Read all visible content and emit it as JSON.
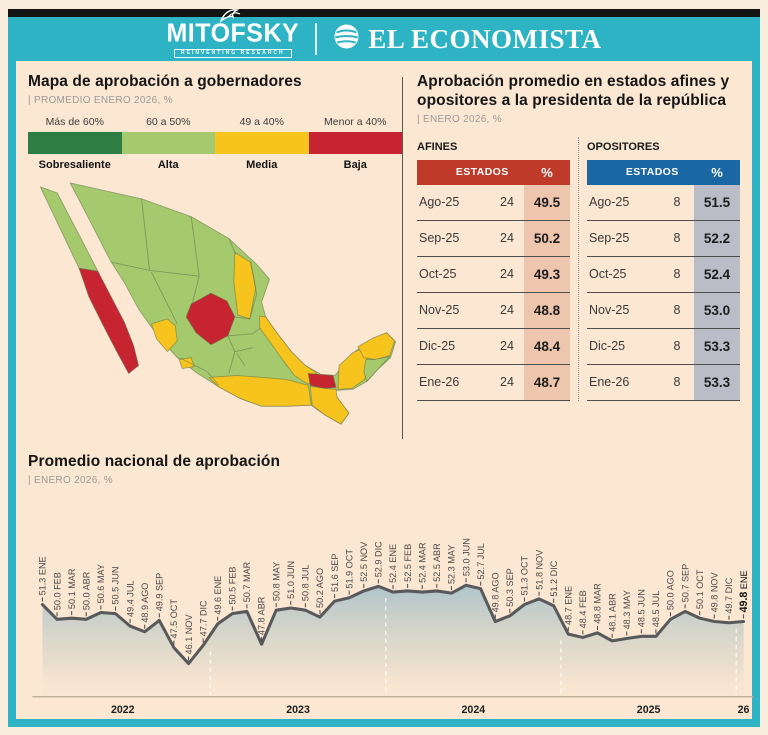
{
  "header": {
    "brand_mitofsky": "MITOFSKY",
    "brand_mitofsky_tagline": "REINVENTING RESEARCH",
    "brand_economista": "EL ECONOMISTA",
    "colors": {
      "band": "#2db3c4",
      "topbar": "#141414"
    }
  },
  "map_section": {
    "title": "Mapa de aprobación a gobernadores",
    "subtitle": "| PROMEDIO ENERO 2026, %",
    "legend": [
      {
        "key": "sobresaliente",
        "range": "Más de 60%",
        "label": "Sobresaliente",
        "color": "#2e7d44"
      },
      {
        "key": "alta",
        "range": "60 a 50%",
        "label": "Alta",
        "color": "#a4ca6d"
      },
      {
        "key": "media",
        "range": "49 a 40%",
        "label": "Media",
        "color": "#f6c41c"
      },
      {
        "key": "baja",
        "range": "Menor a 40%",
        "label": "Baja",
        "color": "#c52430"
      }
    ],
    "regions": [
      {
        "id": "mainland",
        "category": "alta"
      },
      {
        "id": "baja-california",
        "category": "alta"
      },
      {
        "id": "baja-california-sur",
        "category": "baja"
      },
      {
        "id": "nuevo-leon",
        "category": "media"
      },
      {
        "id": "zacatecas",
        "category": "baja"
      },
      {
        "id": "nayarit",
        "category": "media"
      },
      {
        "id": "colima",
        "category": "media"
      },
      {
        "id": "veracruz",
        "category": "media"
      },
      {
        "id": "sur-guerrero-oaxaca",
        "category": "media"
      },
      {
        "id": "tabasco",
        "category": "baja"
      },
      {
        "id": "chiapas",
        "category": "media"
      },
      {
        "id": "campeche",
        "category": "media"
      },
      {
        "id": "yucatan",
        "category": "media"
      },
      {
        "id": "quintana-roo",
        "category": "alta"
      }
    ]
  },
  "tables_section": {
    "title": "Aprobación promedio en estados afines y opositores a la presidenta de la república",
    "subtitle": "| ENERO 2026, %",
    "afines": {
      "label": "AFINES",
      "header_color": "#bf3a28",
      "pct_bg": "#eec5ad",
      "col_estados": "ESTADOS",
      "col_pct": "%",
      "rows": [
        [
          "Ago-25",
          "24",
          "49.5"
        ],
        [
          "Sep-25",
          "24",
          "50.2"
        ],
        [
          "Oct-25",
          "24",
          "49.3"
        ],
        [
          "Nov-25",
          "24",
          "48.8"
        ],
        [
          "Dic-25",
          "24",
          "48.4"
        ],
        [
          "Ene-26",
          "24",
          "48.7"
        ]
      ]
    },
    "opositores": {
      "label": "OPOSITORES",
      "header_color": "#1b67a4",
      "pct_bg": "#babdc7",
      "col_estados": "ESTADOS",
      "col_pct": "%",
      "rows": [
        [
          "Ago-25",
          "8",
          "51.5"
        ],
        [
          "Sep-25",
          "8",
          "52.2"
        ],
        [
          "Oct-25",
          "8",
          "52.4"
        ],
        [
          "Nov-25",
          "8",
          "53.0"
        ],
        [
          "Dic-25",
          "8",
          "53.3"
        ],
        [
          "Ene-26",
          "8",
          "53.3"
        ]
      ]
    }
  },
  "chart_section": {
    "title": "Promedio nacional de aprobación",
    "subtitle": "| ENERO 2026, %"
  },
  "chart_data": {
    "type": "area",
    "title": "Promedio nacional de aprobación",
    "unit": "%",
    "ylim": [
      46,
      53.5
    ],
    "line_color": "#58595b",
    "area_color_top": "#aec4c9",
    "months": [
      "ENE",
      "FEB",
      "MAR",
      "ABR",
      "MAY",
      "JUN",
      "JUL",
      "AGO",
      "SEP",
      "OCT",
      "NOV",
      "DIC"
    ],
    "years": [
      {
        "year": "2022",
        "values": [
          51.3,
          50.0,
          50.1,
          50.0,
          50.6,
          50.5,
          49.4,
          48.9,
          49.9,
          47.5,
          46.1,
          47.7
        ]
      },
      {
        "year": "2023",
        "values": [
          49.6,
          50.5,
          50.7,
          47.8,
          50.8,
          51.0,
          50.8,
          50.2,
          51.6,
          51.9,
          52.5,
          52.9
        ]
      },
      {
        "year": "2024",
        "values": [
          52.4,
          52.5,
          52.4,
          52.5,
          52.3,
          53.0,
          52.7,
          49.8,
          50.3,
          51.3,
          51.8,
          51.2
        ]
      },
      {
        "year": "2025",
        "values": [
          48.7,
          48.4,
          48.8,
          48.1,
          48.3,
          48.5,
          48.5,
          50.0,
          50.7,
          50.1,
          49.8,
          49.7
        ]
      },
      {
        "year": "26",
        "values": [
          49.8
        ]
      }
    ],
    "x_axis_labels": [
      "2022",
      "2023",
      "2024",
      "2025",
      "26"
    ]
  }
}
